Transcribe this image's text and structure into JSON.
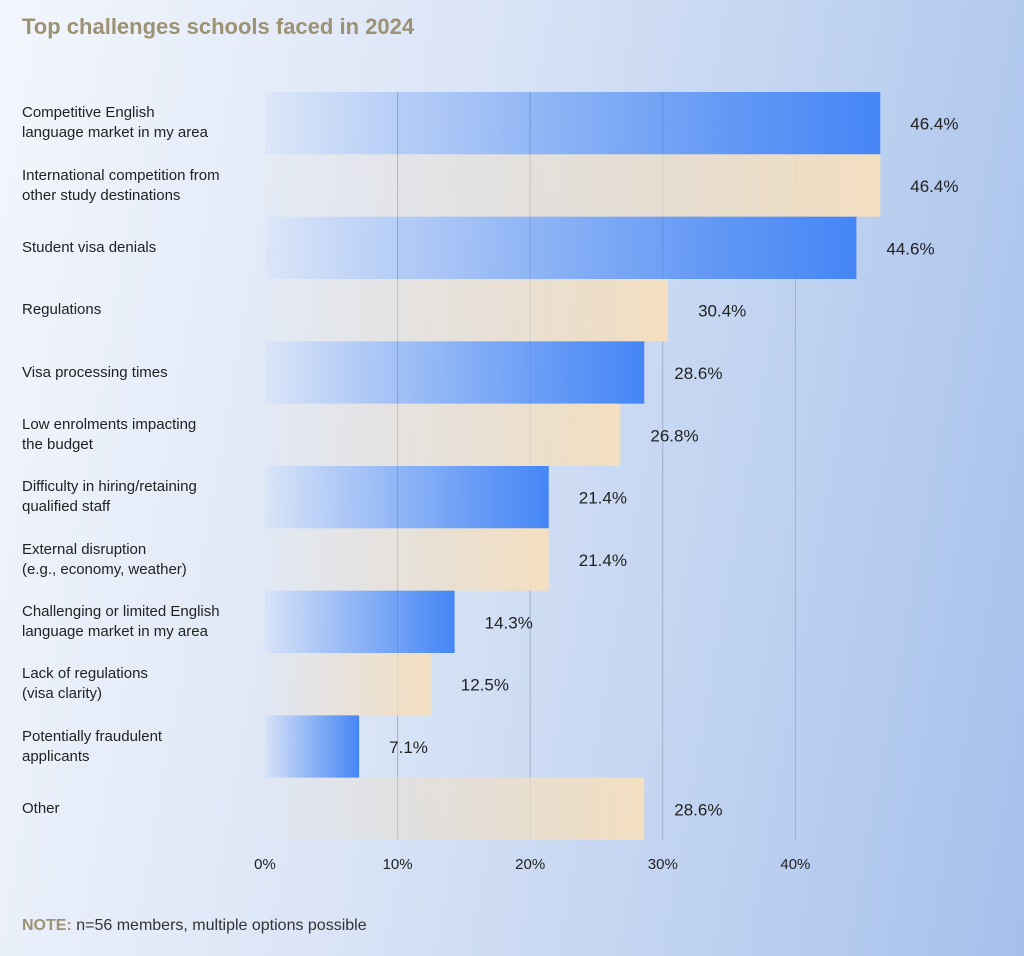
{
  "chart_data": {
    "type": "barh",
    "title": "Top challenges schools faced in 2024",
    "categories": [
      "Competitive English\nlanguage market in my area",
      "International competition from\nother study destinations",
      "Student visa denials",
      "Regulations",
      "Visa processing times",
      "Low enrolments impacting\nthe budget",
      "Difficulty in hiring/retaining\nqualified staff",
      "External disruption\n(e.g., economy, weather)",
      "Challenging or limited English\nlanguage market in my area",
      "Lack of regulations\n(visa clarity)",
      "Potentially fraudulent\napplicants",
      "Other"
    ],
    "values": [
      46.4,
      46.4,
      44.6,
      30.4,
      28.6,
      26.8,
      21.4,
      21.4,
      14.3,
      12.5,
      7.1,
      28.6
    ],
    "value_labels": [
      "46.4%",
      "46.4%",
      "44.6%",
      "30.4%",
      "28.6%",
      "26.8%",
      "21.4%",
      "21.4%",
      "14.3%",
      "12.5%",
      "7.1%",
      "28.6%"
    ],
    "colors": [
      "#4586f6",
      "#f4dfc0",
      "#4586f6",
      "#f4dfc0",
      "#4586f6",
      "#f4dfc0",
      "#4586f6",
      "#f4dfc0",
      "#4586f6",
      "#f4dfc0",
      "#4586f6",
      "#f4dfc0"
    ],
    "xlim": [
      0,
      50
    ],
    "xticks": [
      {
        "value": 0,
        "label": "0%"
      },
      {
        "value": 10,
        "label": "10%"
      },
      {
        "value": 20,
        "label": "20%"
      },
      {
        "value": 30,
        "label": "30%"
      },
      {
        "value": 40,
        "label": "40%"
      }
    ],
    "grid": true,
    "note": {
      "label": "NOTE:",
      "text": "n=56 members, multiple options possible"
    }
  }
}
